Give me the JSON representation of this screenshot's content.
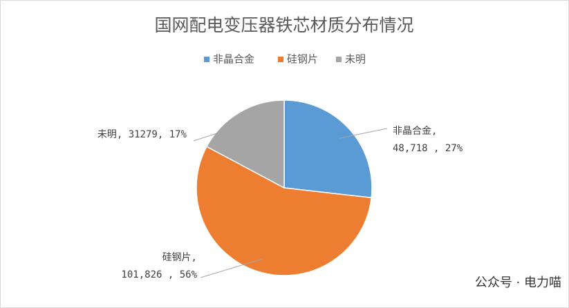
{
  "chart_data": {
    "type": "pie",
    "title": "国网配电变压器铁芯材质分布情况",
    "categories": [
      "非晶合金",
      "硅钢片",
      "未明"
    ],
    "values": [
      48718,
      101826,
      31279
    ],
    "colors": [
      "#5b9bd5",
      "#ed7d31",
      "#a5a5a5"
    ],
    "data_labels": [
      [
        "非晶合金,",
        "48,718 , 27%"
      ],
      [
        "硅钢片,",
        "101,826 , 56%"
      ],
      [
        "未明, 31279, 17%"
      ]
    ],
    "legend": "top"
  },
  "watermark": "公众号 · 电力喵"
}
